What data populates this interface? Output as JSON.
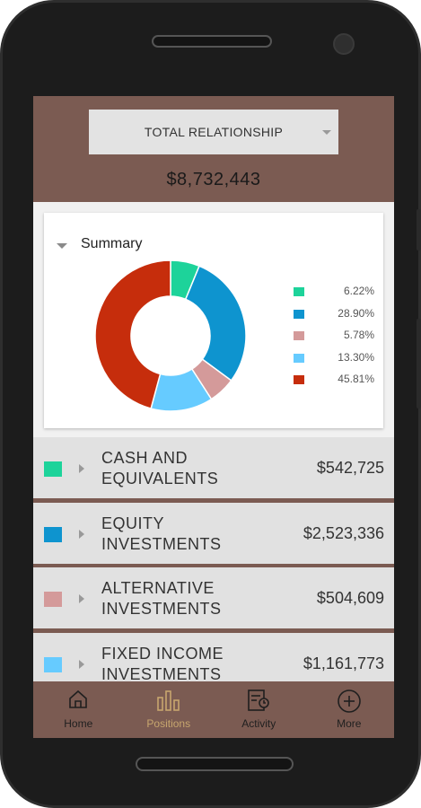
{
  "header": {
    "dropdown_label": "TOTAL RELATIONSHIP",
    "total_value": "$8,732,443"
  },
  "summary": {
    "title": "Summary"
  },
  "chart_data": {
    "type": "pie",
    "donut": true,
    "title": "Summary",
    "values": [
      6.22,
      28.9,
      5.78,
      13.3,
      45.81
    ],
    "labels": [
      "6.22%",
      "28.90%",
      "5.78%",
      "13.30%",
      "45.81%"
    ],
    "colors": [
      "#1dd39a",
      "#0e94cf",
      "#d49a9a",
      "#66cbff",
      "#c62d0c"
    ],
    "legend_position": "right"
  },
  "holdings": [
    {
      "label": "CASH AND EQUIVALENTS",
      "value": "$542,725",
      "color": "#1dd39a"
    },
    {
      "label": "EQUITY INVESTMENTS",
      "value": "$2,523,336",
      "color": "#0e94cf"
    },
    {
      "label": "ALTERNATIVE INVESTMENTS",
      "value": "$504,609",
      "color": "#d49a9a"
    },
    {
      "label": "FIXED INCOME INVESTMENTS",
      "value": "$1,161,773",
      "color": "#66cbff"
    }
  ],
  "tabbar": {
    "tabs": [
      {
        "label": "Home",
        "icon": "home-icon"
      },
      {
        "label": "Positions",
        "icon": "bar-chart-icon",
        "active": true
      },
      {
        "label": "Activity",
        "icon": "activity-icon"
      },
      {
        "label": "More",
        "icon": "plus-circle-icon"
      }
    ]
  },
  "colors": {
    "brand": "#7b5b52",
    "active_tab": "#c7a66e"
  }
}
